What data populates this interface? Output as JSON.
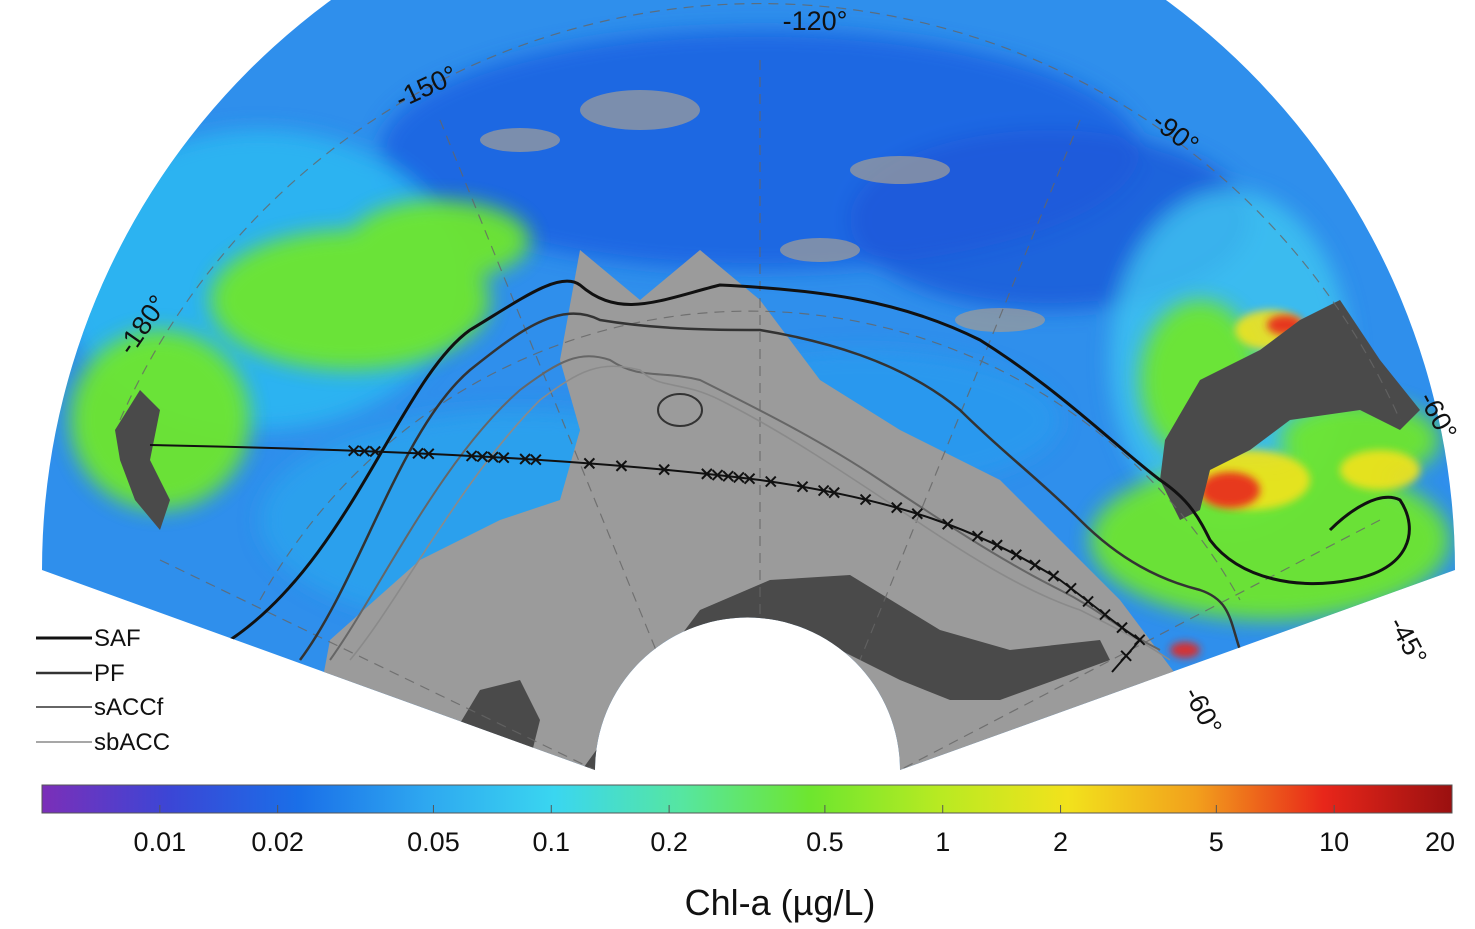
{
  "colors": {
    "land": "#4a4a4a",
    "ice": "#9b9b9b",
    "ocean_low": "#1e66e6",
    "ocean_mid": "#3fb2f0",
    "bloom_green": "#6ee62e",
    "bloom_yellow": "#f2e21c",
    "bloom_red": "#e8261a",
    "front_lines": "#1a1a1a"
  },
  "map": {
    "longitude_labels": [
      "-180°",
      "-150°",
      "-120°",
      "-90°",
      "-60°"
    ],
    "latitude_labels": [
      "-60°",
      "-45°"
    ]
  },
  "legend": {
    "items": [
      {
        "label": "SAF",
        "color": "#111111"
      },
      {
        "label": "PF",
        "color": "#333333"
      },
      {
        "label": "sACCf",
        "color": "#666666"
      },
      {
        "label": "sbACC",
        "color": "#8a8a8a"
      }
    ]
  },
  "colorbar": {
    "title": "Chl-a (µg/L)",
    "scale": "log",
    "range": [
      0.005,
      20
    ],
    "ticks": [
      "0.01",
      "0.02",
      "0.05",
      "0.1",
      "0.2",
      "0.5",
      "1",
      "2",
      "5",
      "10",
      "20"
    ],
    "stops": [
      "#7b2fb8",
      "#3b46d6",
      "#1a6fe8",
      "#2ea8f0",
      "#3ad6f0",
      "#56e6a0",
      "#6ee62e",
      "#b8ea22",
      "#f2e21c",
      "#f2a01c",
      "#e8261a",
      "#9a1010"
    ]
  }
}
